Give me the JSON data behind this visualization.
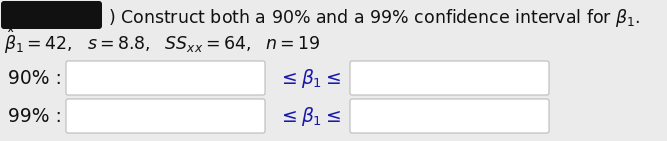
{
  "background_color": "#ebebeb",
  "title_line1": ") Construct both a 90% and a 99% confidence interval for $\\beta_1$.",
  "title_line2": "$\\hat{\\beta}_1 = 42,\\ \\ s = 8.8,\\ \\ SS_{xx} = 64,\\ \\ n = 19$",
  "row1_label": "90% :",
  "row2_label": "99% :",
  "leq_text": "$\\leq \\beta_1 \\leq$",
  "black_rect_color": "#111111",
  "box_fill": "#ffffff",
  "box_edge": "#bbbbbb",
  "text_color": "#1a1aaa",
  "title_color": "#111111",
  "font_size": 12.5,
  "label_font_size": 13.5,
  "leq_font_size": 13.5
}
